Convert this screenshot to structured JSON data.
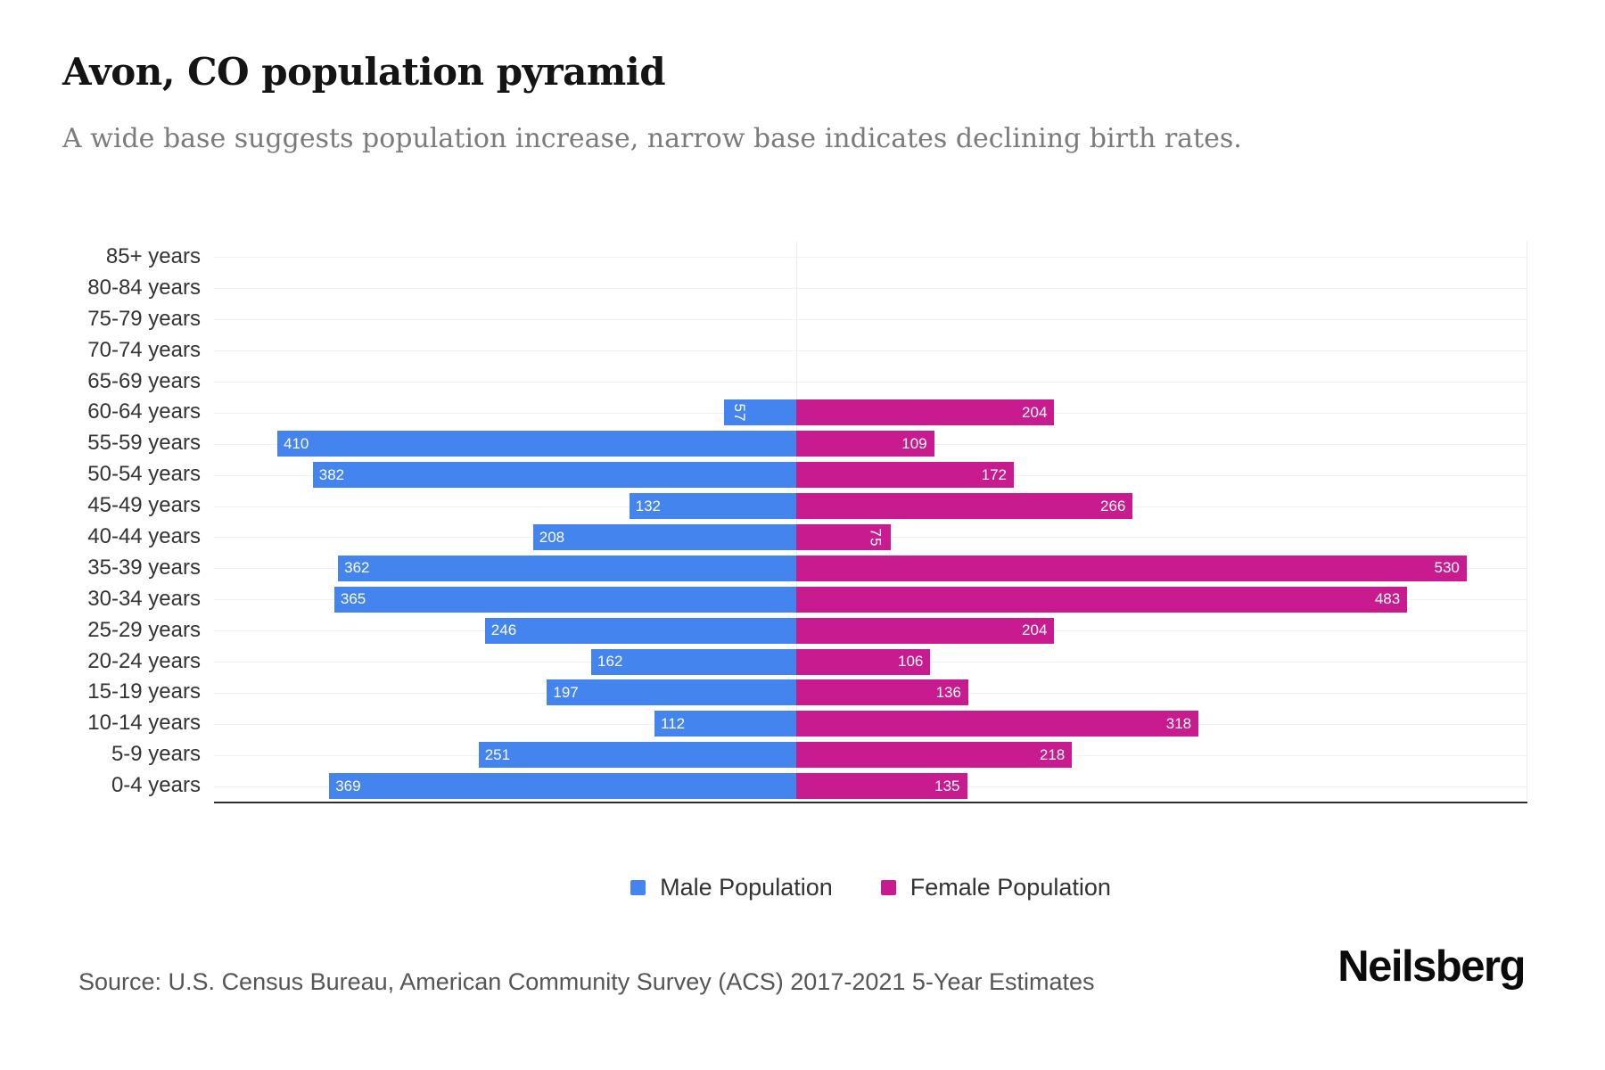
{
  "title": "Avon, CO population pyramid",
  "subtitle": "A wide base suggests population increase, narrow base indicates declining birth rates.",
  "source": "Source: U.S. Census Bureau, American Community Survey (ACS) 2017-2021 5-Year Estimates",
  "logo": "Neilsberg",
  "legend": {
    "male_label": "Male Population",
    "female_label": "Female Population"
  },
  "colors": {
    "male": "#4384EE",
    "female": "#C81B90",
    "gridline": "#f1f1f1",
    "axis_line": "#2b2b2b"
  },
  "chart_data": {
    "type": "bar",
    "variant": "population-pyramid",
    "orientation": "horizontal",
    "categories": [
      "85+ years",
      "80-84 years",
      "75-79 years",
      "70-74 years",
      "65-69 years",
      "60-64 years",
      "55-59 years",
      "50-54 years",
      "45-49 years",
      "40-44 years",
      "35-39 years",
      "30-34 years",
      "25-29 years",
      "20-24 years",
      "15-19 years",
      "10-14 years",
      "5-9 years",
      "0-4 years"
    ],
    "series": [
      {
        "name": "Male Population",
        "values": [
          null,
          null,
          null,
          null,
          null,
          57,
          410,
          382,
          132,
          208,
          362,
          365,
          246,
          162,
          197,
          112,
          251,
          369
        ]
      },
      {
        "name": "Female Population",
        "values": [
          null,
          null,
          null,
          null,
          null,
          204,
          109,
          172,
          266,
          75,
          530,
          483,
          204,
          106,
          136,
          318,
          218,
          135
        ]
      }
    ],
    "axis": {
      "male_max": 460,
      "female_max": 578,
      "x_tick_labels": false
    },
    "grid": "horizontal-light",
    "legend_position": "bottom",
    "value_labels": "inside-outer-end-white"
  }
}
